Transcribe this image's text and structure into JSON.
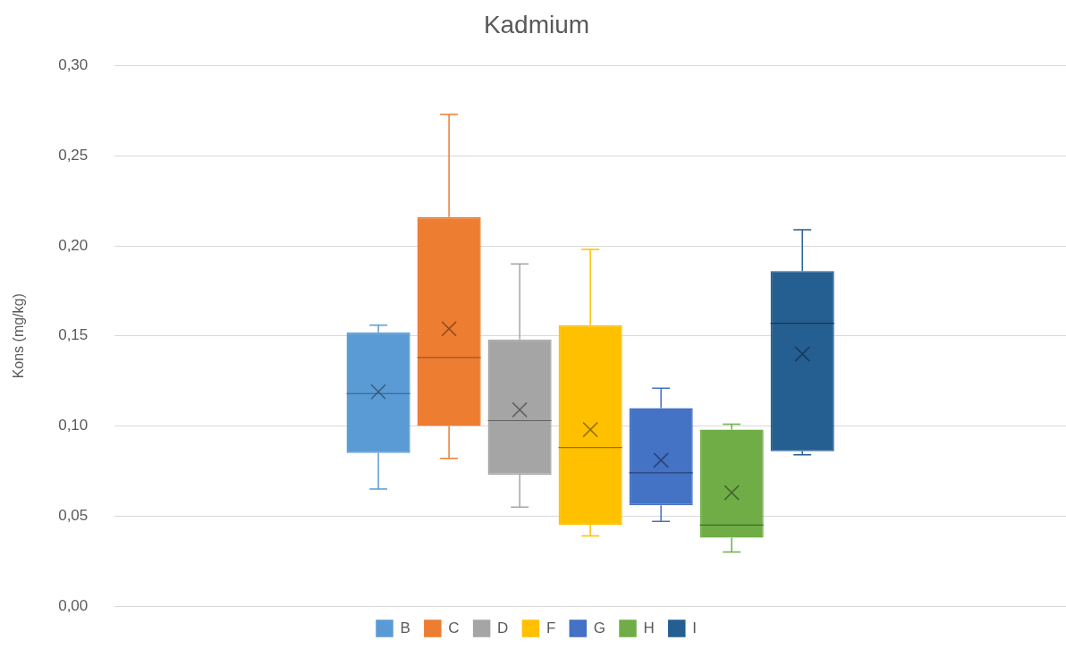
{
  "chart_data": {
    "type": "box",
    "title": "Kadmium",
    "ylabel": "Kons (mg/kg)",
    "categories": [
      null
    ],
    "ylim": [
      0,
      0.3
    ],
    "yticks": [
      {
        "value": 0,
        "label": "0,00"
      },
      {
        "value": 0.05,
        "label": "0,05"
      },
      {
        "value": 0.1,
        "label": "0,10"
      },
      {
        "value": 0.15,
        "label": "0,15"
      },
      {
        "value": 0.2,
        "label": "0,20"
      },
      {
        "value": 0.25,
        "label": "0,25"
      },
      {
        "value": 0.3,
        "label": "0,30"
      }
    ],
    "grid": "y",
    "legend": "bottom",
    "tick_labels": "y",
    "series": [
      {
        "name": "B",
        "color": "#5b9bd5",
        "boxes": [
          {
            "low": 0.065,
            "q1": 0.085,
            "median": 0.118,
            "q3": 0.152,
            "high": 0.156,
            "mean": 0.119
          }
        ]
      },
      {
        "name": "C",
        "color": "#ed7d31",
        "boxes": [
          {
            "low": 0.082,
            "q1": 0.1,
            "median": 0.138,
            "q3": 0.216,
            "high": 0.273,
            "mean": 0.154
          }
        ]
      },
      {
        "name": "D",
        "color": "#a5a5a5",
        "boxes": [
          {
            "low": 0.055,
            "q1": 0.073,
            "median": 0.103,
            "q3": 0.148,
            "high": 0.19,
            "mean": 0.109
          }
        ]
      },
      {
        "name": "F",
        "color": "#ffc000",
        "boxes": [
          {
            "low": 0.039,
            "q1": 0.045,
            "median": 0.088,
            "q3": 0.156,
            "high": 0.198,
            "mean": 0.098
          }
        ]
      },
      {
        "name": "G",
        "color": "#4472c4",
        "boxes": [
          {
            "low": 0.047,
            "q1": 0.056,
            "median": 0.074,
            "q3": 0.11,
            "high": 0.121,
            "mean": 0.081
          }
        ]
      },
      {
        "name": "H",
        "color": "#70ad47",
        "boxes": [
          {
            "low": 0.03,
            "q1": 0.038,
            "median": 0.045,
            "q3": 0.098,
            "high": 0.101,
            "mean": 0.063
          }
        ]
      },
      {
        "name": "I",
        "color": "#255e91",
        "boxes": [
          {
            "low": 0.084,
            "q1": 0.086,
            "median": 0.157,
            "q3": 0.186,
            "high": 0.209,
            "mean": 0.14
          }
        ]
      }
    ]
  }
}
